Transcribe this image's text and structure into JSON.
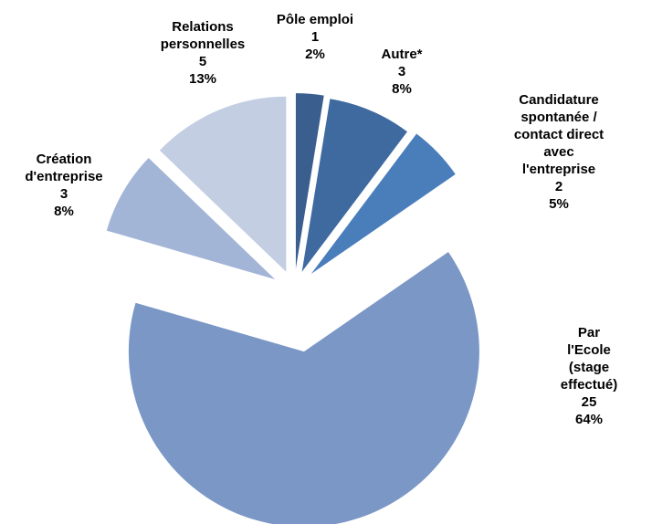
{
  "chart_data": {
    "type": "pie",
    "categories": [
      "Pôle emploi",
      "Autre*",
      "Candidature\nspontanée /\ncontact direct avec\nl'entreprise",
      "Par l'Ecole (stage\neffectué)",
      "Création\nd'entreprise",
      "Relations\npersonnelles"
    ],
    "values": [
      1,
      3,
      2,
      25,
      3,
      5
    ],
    "percent_labels": [
      "2%",
      "8%",
      "5%",
      "64%",
      "8%",
      "13%"
    ],
    "colors": [
      "#3a5f8f",
      "#3f6aa0",
      "#4a7ebb",
      "#7b97c6",
      "#a3b5d6",
      "#c3cee3"
    ]
  }
}
